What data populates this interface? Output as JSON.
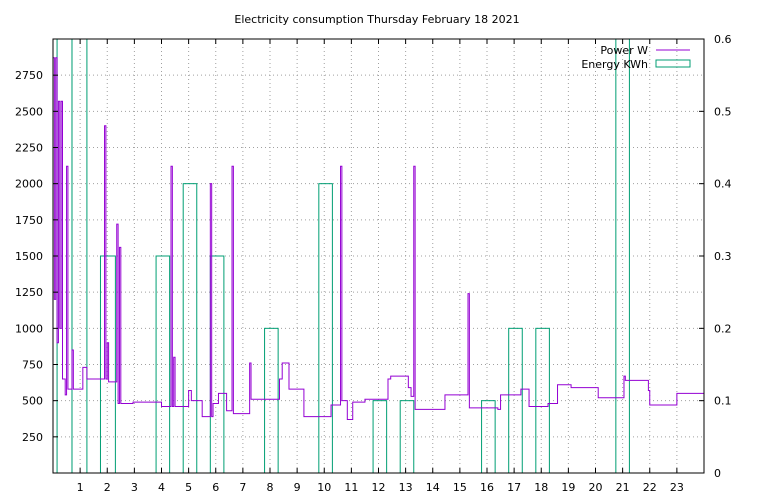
{
  "chart_data": {
    "type": "line",
    "title": "Electricity consumption Thursday February 18 2021",
    "xlabel": "",
    "ylabel": "",
    "y2label": "",
    "xlim": [
      0,
      24
    ],
    "ylim": [
      0,
      3000
    ],
    "y2lim": [
      0,
      0.6
    ],
    "x_ticks": [
      1,
      2,
      3,
      4,
      5,
      6,
      7,
      8,
      9,
      10,
      11,
      12,
      13,
      14,
      15,
      16,
      17,
      18,
      19,
      20,
      21,
      22,
      23
    ],
    "y_ticks": [
      250,
      500,
      750,
      1000,
      1250,
      1500,
      1750,
      2000,
      2250,
      2500,
      2750
    ],
    "y2_ticks": [
      0,
      0.1,
      0.2,
      0.3,
      0.4,
      0.5,
      0.6
    ],
    "y2_tick_labels": [
      "0",
      "0.1",
      "0.2",
      "0.3",
      "0.4",
      "0.5",
      "0.6"
    ],
    "grid": true,
    "legend_position": "top-right",
    "colors": {
      "power": "#9400d3",
      "energy": "#009e73"
    },
    "series": [
      {
        "name": "Power W",
        "axis": "left",
        "style": "step",
        "points": [
          [
            0.0,
            2870
          ],
          [
            0.05,
            1200
          ],
          [
            0.1,
            2870
          ],
          [
            0.15,
            900
          ],
          [
            0.2,
            2570
          ],
          [
            0.25,
            1000
          ],
          [
            0.3,
            2570
          ],
          [
            0.35,
            650
          ],
          [
            0.4,
            650
          ],
          [
            0.45,
            540
          ],
          [
            0.5,
            2120
          ],
          [
            0.55,
            580
          ],
          [
            0.7,
            850
          ],
          [
            0.75,
            580
          ],
          [
            1.05,
            580
          ],
          [
            1.1,
            730
          ],
          [
            1.25,
            650
          ],
          [
            1.85,
            650
          ],
          [
            1.9,
            2400
          ],
          [
            1.95,
            650
          ],
          [
            2.0,
            900
          ],
          [
            2.05,
            630
          ],
          [
            2.3,
            630
          ],
          [
            2.35,
            1720
          ],
          [
            2.4,
            480
          ],
          [
            2.45,
            1560
          ],
          [
            2.5,
            480
          ],
          [
            2.9,
            480
          ],
          [
            2.95,
            490
          ],
          [
            3.95,
            490
          ],
          [
            4.0,
            460
          ],
          [
            4.3,
            460
          ],
          [
            4.35,
            2120
          ],
          [
            4.4,
            460
          ],
          [
            4.45,
            800
          ],
          [
            4.5,
            460
          ],
          [
            4.95,
            460
          ],
          [
            5.0,
            570
          ],
          [
            5.1,
            500
          ],
          [
            5.45,
            500
          ],
          [
            5.5,
            390
          ],
          [
            5.75,
            390
          ],
          [
            5.8,
            2000
          ],
          [
            5.85,
            390
          ],
          [
            5.9,
            480
          ],
          [
            6.05,
            480
          ],
          [
            6.1,
            550
          ],
          [
            6.35,
            550
          ],
          [
            6.4,
            430
          ],
          [
            6.55,
            430
          ],
          [
            6.6,
            2120
          ],
          [
            6.65,
            410
          ],
          [
            7.2,
            410
          ],
          [
            7.25,
            760
          ],
          [
            7.3,
            510
          ],
          [
            8.3,
            510
          ],
          [
            8.35,
            650
          ],
          [
            8.45,
            760
          ],
          [
            8.65,
            760
          ],
          [
            8.7,
            580
          ],
          [
            9.2,
            580
          ],
          [
            9.25,
            390
          ],
          [
            10.2,
            390
          ],
          [
            10.25,
            470
          ],
          [
            10.55,
            470
          ],
          [
            10.6,
            2120
          ],
          [
            10.65,
            500
          ],
          [
            10.8,
            500
          ],
          [
            10.85,
            370
          ],
          [
            11.0,
            370
          ],
          [
            11.05,
            490
          ],
          [
            11.45,
            490
          ],
          [
            11.5,
            510
          ],
          [
            12.3,
            510
          ],
          [
            12.35,
            650
          ],
          [
            12.45,
            670
          ],
          [
            13.05,
            670
          ],
          [
            13.1,
            590
          ],
          [
            13.2,
            530
          ],
          [
            13.3,
            2120
          ],
          [
            13.35,
            440
          ],
          [
            14.4,
            440
          ],
          [
            14.45,
            540
          ],
          [
            15.25,
            540
          ],
          [
            15.3,
            1240
          ],
          [
            15.35,
            450
          ],
          [
            16.35,
            450
          ],
          [
            16.4,
            440
          ],
          [
            16.5,
            540
          ],
          [
            17.2,
            540
          ],
          [
            17.25,
            580
          ],
          [
            17.5,
            580
          ],
          [
            17.55,
            460
          ],
          [
            18.2,
            460
          ],
          [
            18.25,
            480
          ],
          [
            18.55,
            480
          ],
          [
            18.6,
            610
          ],
          [
            19.05,
            610
          ],
          [
            19.1,
            590
          ],
          [
            20.05,
            590
          ],
          [
            20.1,
            520
          ],
          [
            21.0,
            520
          ],
          [
            21.05,
            670
          ],
          [
            21.1,
            640
          ],
          [
            21.9,
            640
          ],
          [
            21.95,
            570
          ],
          [
            22.0,
            470
          ],
          [
            22.95,
            470
          ],
          [
            23.0,
            550
          ],
          [
            24.0,
            550
          ]
        ]
      },
      {
        "name": "Energy KWh",
        "axis": "right",
        "style": "boxes",
        "bars": [
          [
            0.15,
            0.7,
            0.6
          ],
          [
            0.7,
            1.25,
            0.6
          ],
          [
            1.75,
            2.3,
            0.3
          ],
          [
            3.8,
            4.3,
            0.3
          ],
          [
            4.8,
            5.3,
            0.4
          ],
          [
            5.8,
            6.3,
            0.3
          ],
          [
            7.8,
            8.3,
            0.2
          ],
          [
            9.8,
            10.3,
            0.4
          ],
          [
            11.8,
            12.3,
            0.1
          ],
          [
            12.8,
            13.3,
            0.1
          ],
          [
            15.8,
            16.3,
            0.1
          ],
          [
            16.8,
            17.3,
            0.2
          ],
          [
            17.8,
            18.3,
            0.2
          ],
          [
            20.75,
            21.25,
            0.6
          ]
        ]
      }
    ]
  }
}
